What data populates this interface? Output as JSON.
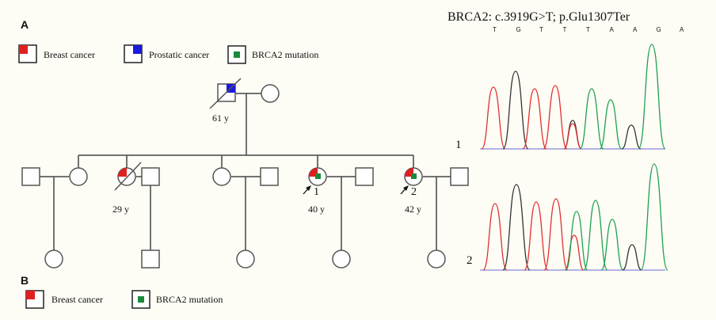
{
  "panels": {
    "a": "A",
    "b": "B"
  },
  "legend_a": [
    {
      "label": "Breast cancer",
      "icon": "breast-cancer-icon",
      "color": "#e02020"
    },
    {
      "label": "Prostatic cancer",
      "icon": "prostatic-cancer-icon",
      "color": "#1a1adb"
    },
    {
      "label": "BRCA2 mutation",
      "icon": "brca2-mutation-icon",
      "color": "#1a8a3a"
    }
  ],
  "legend_b": [
    {
      "label": "Breast cancer",
      "icon": "breast-cancer-icon",
      "color": "#e02020"
    },
    {
      "label": "BRCA2 mutation",
      "icon": "brca2-mutation-icon",
      "color": "#1a8a3a"
    }
  ],
  "pedigree": {
    "grandfather_age": "61 y",
    "sister_age": "29 y",
    "proband1": {
      "number": "1",
      "age": "40 y"
    },
    "proband2": {
      "number": "2",
      "age": "42 y"
    }
  },
  "sequencing": {
    "title": "BRCA2: c.3919G>T; p.Glu1307Ter",
    "bases": [
      "T",
      "G",
      "T",
      "T",
      "T",
      "A",
      "A",
      "G",
      "A"
    ],
    "base_colors": {
      "T": "#e03030",
      "G": "#333333",
      "A": "#20a050"
    },
    "trace_labels": [
      "1",
      "2"
    ]
  }
}
